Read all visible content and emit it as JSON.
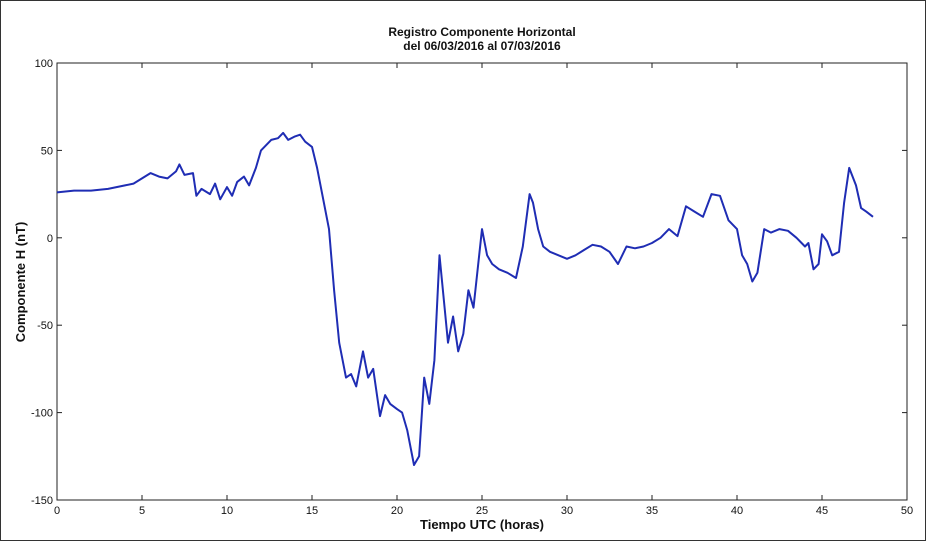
{
  "chart_data": {
    "type": "line",
    "title": "Registro Componente Horizontal",
    "subtitle": "del 06/03/2016 al 07/03/2016",
    "xlabel": "Tiempo UTC (horas)",
    "ylabel": "Componente H (nT)",
    "xlim": [
      0,
      50
    ],
    "ylim": [
      -150,
      100
    ],
    "xticks": [
      0,
      5,
      10,
      15,
      20,
      25,
      30,
      35,
      40,
      45,
      50
    ],
    "yticks": [
      -150,
      -100,
      -50,
      0,
      50,
      100
    ],
    "grid": false,
    "line_color": "#1f2db4",
    "series": [
      {
        "x": [
          0,
          1,
          2,
          3,
          4,
          4.5,
          5,
          5.5,
          6,
          6.5,
          7,
          7.2,
          7.5,
          8,
          8.2,
          8.5,
          9,
          9.3,
          9.6,
          10,
          10.3,
          10.6,
          11,
          11.3,
          11.7,
          12,
          12.3,
          12.6,
          13,
          13.3,
          13.6,
          14,
          14.3,
          14.6,
          15,
          15.3,
          15.6,
          16,
          16.3,
          16.6,
          17,
          17.3,
          17.6,
          18,
          18.3,
          18.6,
          19,
          19.3,
          19.6,
          20,
          20.3,
          20.6,
          21,
          21.3,
          21.6,
          21.9,
          22.2,
          22.5,
          22.8,
          23,
          23.3,
          23.6,
          23.9,
          24.2,
          24.5,
          25,
          25.3,
          25.6,
          26,
          26.5,
          27,
          27.4,
          27.8,
          28,
          28.3,
          28.6,
          29,
          29.5,
          30,
          30.5,
          31,
          31.5,
          32,
          32.5,
          33,
          33.5,
          34,
          34.5,
          35,
          35.5,
          36,
          36.5,
          37,
          37.5,
          38,
          38.5,
          39,
          39.5,
          40,
          40.3,
          40.6,
          40.9,
          41.2,
          41.6,
          42,
          42.5,
          43,
          43.5,
          44,
          44.2,
          44.5,
          44.8,
          45,
          45.3,
          45.6,
          46,
          46.3,
          46.6,
          47,
          47.3,
          47.6,
          48
        ],
        "y": [
          26,
          27,
          27,
          28,
          30,
          31,
          34,
          37,
          35,
          34,
          38,
          42,
          36,
          37,
          24,
          28,
          25,
          31,
          22,
          29,
          24,
          32,
          35,
          30,
          40,
          50,
          53,
          56,
          57,
          60,
          56,
          58,
          59,
          55,
          52,
          40,
          25,
          5,
          -30,
          -60,
          -80,
          -78,
          -85,
          -65,
          -80,
          -75,
          -102,
          -90,
          -95,
          -98,
          -100,
          -110,
          -130,
          -125,
          -80,
          -95,
          -70,
          -10,
          -40,
          -60,
          -45,
          -65,
          -55,
          -30,
          -40,
          5,
          -10,
          -15,
          -18,
          -20,
          -23,
          -5,
          25,
          20,
          5,
          -5,
          -8,
          -10,
          -12,
          -10,
          -7,
          -4,
          -5,
          -8,
          -15,
          -5,
          -6,
          -5,
          -3,
          0,
          5,
          1,
          18,
          15,
          12,
          25,
          24,
          10,
          5,
          -10,
          -15,
          -25,
          -20,
          5,
          3,
          5,
          4,
          0,
          -5,
          -3,
          -18,
          -15,
          2,
          -2,
          -10,
          -8,
          20,
          40,
          30,
          17,
          15,
          12
        ]
      }
    ]
  }
}
